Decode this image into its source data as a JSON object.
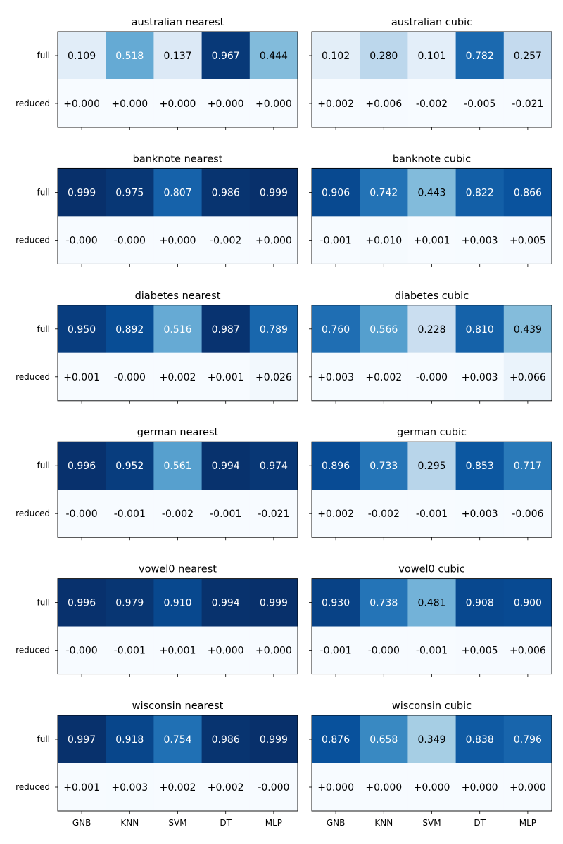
{
  "chart_data": {
    "type": "heatmap",
    "colormap": "Blues",
    "value_range": [
      0,
      1
    ],
    "row_labels": [
      "full",
      "reduced"
    ],
    "col_labels": [
      "GNB",
      "KNN",
      "SVM",
      "DT",
      "MLP"
    ],
    "panels": [
      {
        "title": "australian nearest",
        "full": [
          "0.109",
          "0.518",
          "0.137",
          "0.967",
          "0.444"
        ],
        "reduced": [
          "+0.000",
          "+0.000",
          "+0.000",
          "+0.000",
          "+0.000"
        ]
      },
      {
        "title": "australian cubic",
        "full": [
          "0.102",
          "0.280",
          "0.101",
          "0.782",
          "0.257"
        ],
        "reduced": [
          "+0.002",
          "+0.006",
          "-0.002",
          "-0.005",
          "-0.021"
        ]
      },
      {
        "title": "banknote nearest",
        "full": [
          "0.999",
          "0.975",
          "0.807",
          "0.986",
          "0.999"
        ],
        "reduced": [
          "-0.000",
          "-0.000",
          "+0.000",
          "-0.002",
          "+0.000"
        ]
      },
      {
        "title": "banknote cubic",
        "full": [
          "0.906",
          "0.742",
          "0.443",
          "0.822",
          "0.866"
        ],
        "reduced": [
          "-0.001",
          "+0.010",
          "+0.001",
          "+0.003",
          "+0.005"
        ]
      },
      {
        "title": "diabetes nearest",
        "full": [
          "0.950",
          "0.892",
          "0.516",
          "0.987",
          "0.789"
        ],
        "reduced": [
          "+0.001",
          "-0.000",
          "+0.002",
          "+0.001",
          "+0.026"
        ]
      },
      {
        "title": "diabetes cubic",
        "full": [
          "0.760",
          "0.566",
          "0.228",
          "0.810",
          "0.439"
        ],
        "reduced": [
          "+0.003",
          "+0.002",
          "-0.000",
          "+0.003",
          "+0.066"
        ]
      },
      {
        "title": "german nearest",
        "full": [
          "0.996",
          "0.952",
          "0.561",
          "0.994",
          "0.974"
        ],
        "reduced": [
          "-0.000",
          "-0.001",
          "-0.002",
          "-0.001",
          "-0.021"
        ]
      },
      {
        "title": "german cubic",
        "full": [
          "0.896",
          "0.733",
          "0.295",
          "0.853",
          "0.717"
        ],
        "reduced": [
          "+0.002",
          "-0.002",
          "-0.001",
          "+0.003",
          "-0.006"
        ]
      },
      {
        "title": "vowel0 nearest",
        "full": [
          "0.996",
          "0.979",
          "0.910",
          "0.994",
          "0.999"
        ],
        "reduced": [
          "-0.000",
          "-0.001",
          "+0.001",
          "+0.000",
          "+0.000"
        ]
      },
      {
        "title": "vowel0 cubic",
        "full": [
          "0.930",
          "0.738",
          "0.481",
          "0.908",
          "0.900"
        ],
        "reduced": [
          "-0.001",
          "-0.000",
          "-0.001",
          "+0.005",
          "+0.006"
        ]
      },
      {
        "title": "wisconsin nearest",
        "full": [
          "0.997",
          "0.918",
          "0.754",
          "0.986",
          "0.999"
        ],
        "reduced": [
          "+0.001",
          "+0.003",
          "+0.002",
          "+0.002",
          "-0.000"
        ]
      },
      {
        "title": "wisconsin cubic",
        "full": [
          "0.876",
          "0.658",
          "0.349",
          "0.838",
          "0.796"
        ],
        "reduced": [
          "+0.000",
          "+0.000",
          "+0.000",
          "+0.000",
          "+0.000"
        ]
      }
    ]
  }
}
